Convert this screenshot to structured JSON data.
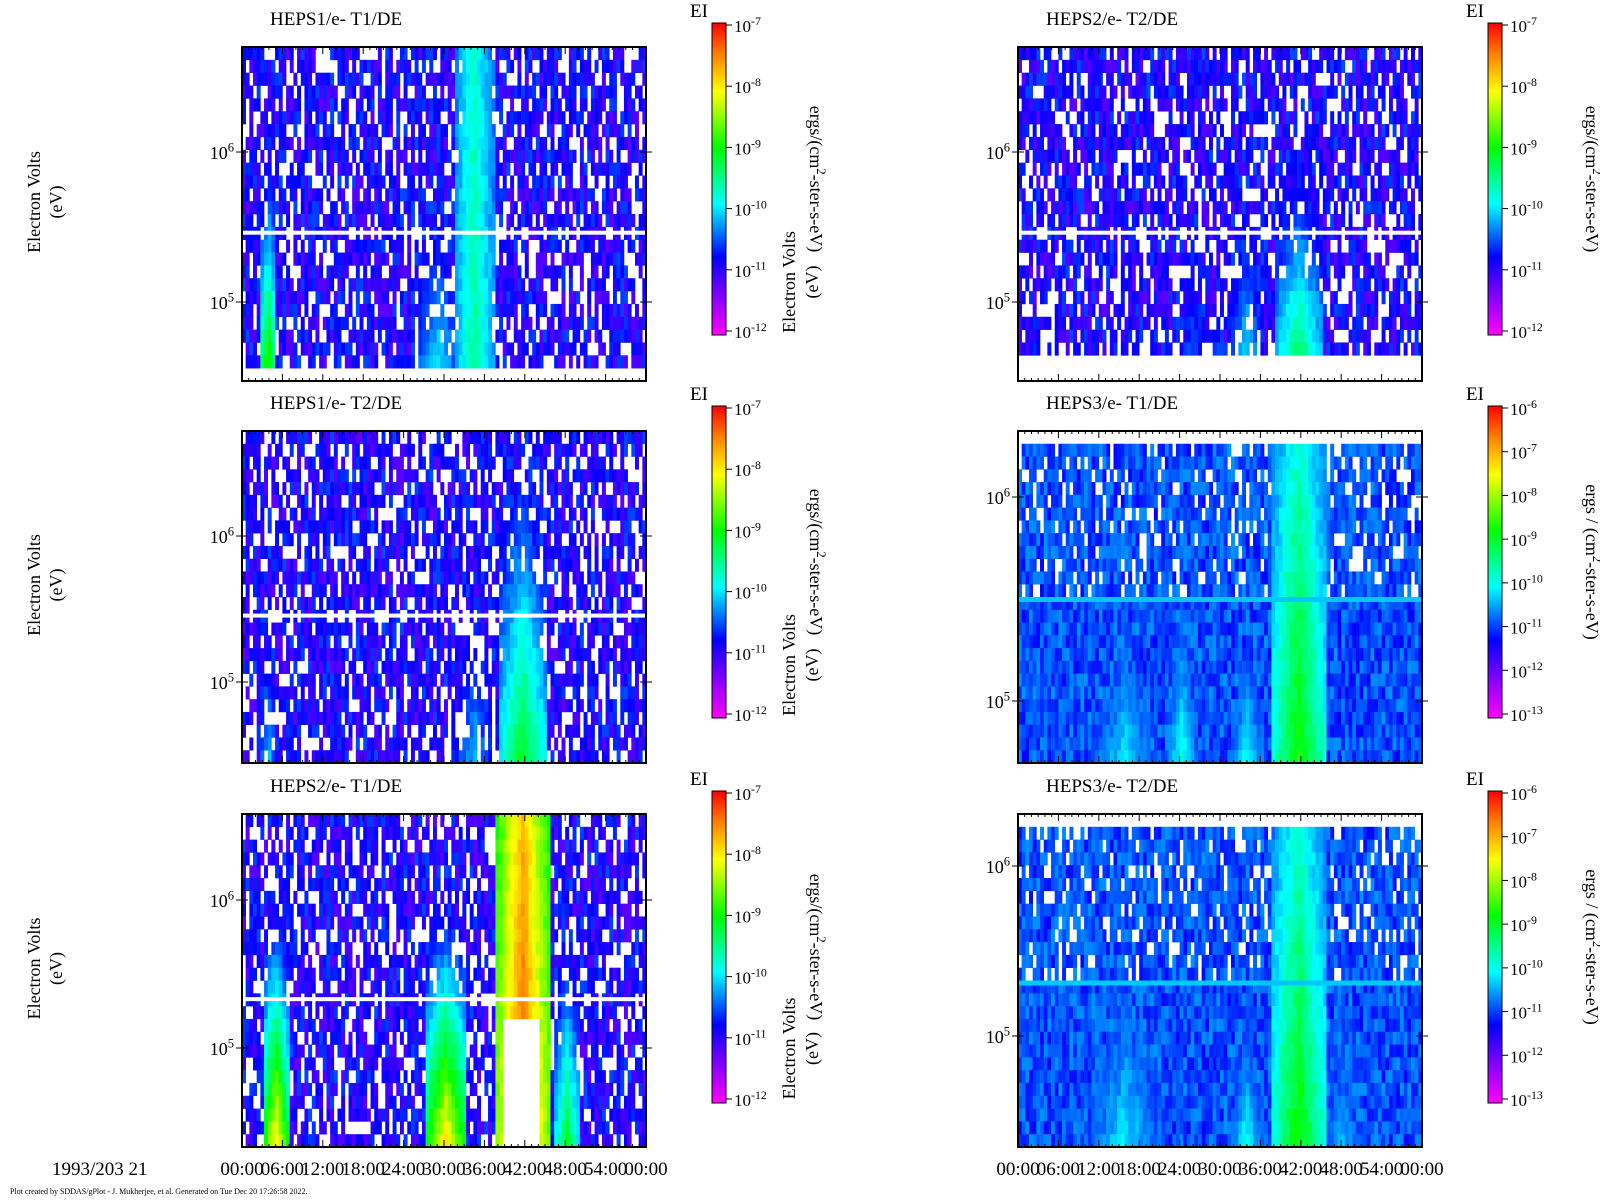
{
  "footer": "Plot created by SDDAS/gPlot - J. Mukherjee, et al.  Generated on Tue Dec 20 17:26:58 2022.",
  "date_label": "1993/203 21",
  "chart_data": [
    {
      "type": "heatmap",
      "title": "HEPS1/e- T1/DE",
      "ylabel": "Electron Volts",
      "yunit": "(eV)",
      "y_scale": "log",
      "y_ticks": [
        "10^6",
        "10^5"
      ],
      "colorbar": {
        "label": "EI",
        "units": "ergs/(cm^2-ster-s-eV)",
        "ticks": [
          "10^-7",
          "10^-8",
          "10^-9",
          "10^-10",
          "10^-11",
          "10^-12"
        ]
      }
    },
    {
      "type": "heatmap",
      "title": "HEPS1/e- T2/DE",
      "ylabel": "Electron Volts",
      "yunit": "(eV)",
      "y_scale": "log",
      "y_ticks": [
        "10^6",
        "10^5"
      ],
      "colorbar": {
        "label": "EI",
        "units": "ergs/(cm^2-ster-s-eV)",
        "ticks": [
          "10^-7",
          "10^-8",
          "10^-9",
          "10^-10",
          "10^-11",
          "10^-12"
        ]
      }
    },
    {
      "type": "heatmap",
      "title": "HEPS2/e- T1/DE",
      "ylabel": "Electron Volts",
      "yunit": "(eV)",
      "y_scale": "log",
      "y_ticks": [
        "10^6",
        "10^5"
      ],
      "x_ticks": [
        "00:00",
        "06:00",
        "12:00",
        "18:00",
        "24:00",
        "30:00",
        "36:00",
        "42:00",
        "48:00",
        "54:00",
        "00:00"
      ],
      "colorbar": {
        "label": "EI",
        "units": "ergs/(cm^2-ster-s-eV)",
        "ticks": [
          "10^-7",
          "10^-8",
          "10^-9",
          "10^-10",
          "10^-11",
          "10^-12"
        ]
      }
    },
    {
      "type": "heatmap",
      "title": "HEPS2/e- T2/DE",
      "y_scale": "log",
      "y_ticks": [
        "10^6",
        "10^5"
      ],
      "colorbar": {
        "label": "EI",
        "units": "ergs/(cm^2-ster-s-eV)",
        "ticks": [
          "10^-7",
          "10^-8",
          "10^-9",
          "10^-10",
          "10^-11",
          "10^-12"
        ]
      }
    },
    {
      "type": "heatmap",
      "title": "HEPS3/e- T1/DE",
      "y_scale": "log",
      "y_ticks": [
        "10^6",
        "10^5"
      ],
      "colorbar": {
        "label": "EI",
        "units": "ergs / (cm^2-ster-s-eV)",
        "ticks": [
          "10^-6",
          "10^-7",
          "10^-8",
          "10^-9",
          "10^-10",
          "10^-11",
          "10^-12",
          "10^-13"
        ]
      }
    },
    {
      "type": "heatmap",
      "title": "HEPS3/e- T2/DE",
      "y_scale": "log",
      "y_ticks": [
        "10^6",
        "10^5"
      ],
      "x_ticks": [
        "00:00",
        "06:00",
        "12:00",
        "18:00",
        "24:00",
        "30:00",
        "36:00",
        "42:00",
        "48:00",
        "54:00",
        "00:00"
      ],
      "colorbar": {
        "label": "EI",
        "units": "ergs / (cm^2-ster-s-eV)",
        "ticks": [
          "10^-6",
          "10^-7",
          "10^-8",
          "10^-9",
          "10^-10",
          "10^-11",
          "10^-12",
          "10^-13"
        ]
      }
    }
  ]
}
